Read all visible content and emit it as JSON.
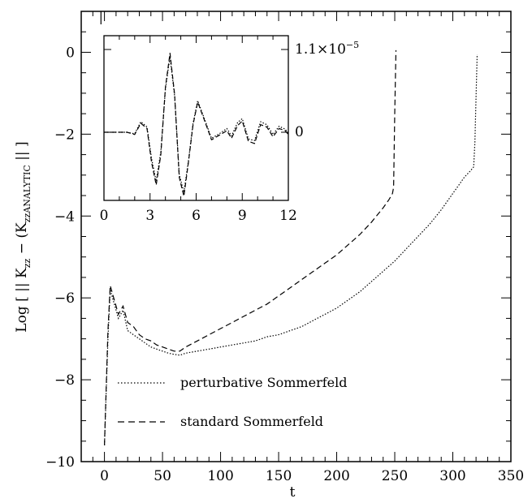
{
  "chart_data": [
    {
      "type": "line",
      "title": "",
      "xlabel": "t",
      "ylabel": "Log [ || K_zz − (K_zz)_ANALYTIC || ]",
      "ylabel_parts": {
        "prefix": "Log [ || K",
        "sub1": "zz",
        "mid": " − (K",
        "sub2": "zz",
        "sub3": "ANALYTIC",
        "suffix": " || ]"
      },
      "xlim": [
        -20,
        350
      ],
      "ylim": [
        -10,
        1
      ],
      "xticks": [
        0,
        50,
        100,
        150,
        200,
        250,
        300,
        350
      ],
      "yticks": [
        -10,
        -8,
        -6,
        -4,
        -2,
        0
      ],
      "legend_placement": "bottom-left inside",
      "series": [
        {
          "name": "perturbative Sommerfeld",
          "style": "dotted",
          "color": "#000000",
          "x": [
            0,
            3,
            5,
            8,
            12,
            16,
            20,
            25,
            30,
            35,
            40,
            45,
            50,
            55,
            60,
            65,
            70,
            80,
            90,
            100,
            110,
            120,
            130,
            140,
            150,
            160,
            170,
            180,
            190,
            200,
            210,
            220,
            230,
            240,
            250,
            260,
            270,
            280,
            290,
            300,
            305,
            310,
            315,
            318,
            319,
            320,
            321
          ],
          "y": [
            -9.6,
            -7.0,
            -5.8,
            -6.1,
            -6.5,
            -6.3,
            -6.8,
            -6.9,
            -7.0,
            -7.1,
            -7.2,
            -7.25,
            -7.3,
            -7.35,
            -7.38,
            -7.4,
            -7.35,
            -7.3,
            -7.25,
            -7.2,
            -7.15,
            -7.1,
            -7.05,
            -6.95,
            -6.9,
            -6.8,
            -6.7,
            -6.55,
            -6.4,
            -6.25,
            -6.05,
            -5.85,
            -5.6,
            -5.35,
            -5.1,
            -4.8,
            -4.5,
            -4.2,
            -3.85,
            -3.45,
            -3.25,
            -3.05,
            -2.9,
            -2.8,
            -2.2,
            -1.1,
            -0.05
          ]
        },
        {
          "name": "standard Sommerfeld",
          "style": "dashed",
          "color": "#000000",
          "x": [
            0,
            3,
            5,
            8,
            12,
            16,
            20,
            25,
            30,
            35,
            40,
            45,
            50,
            55,
            60,
            65,
            70,
            80,
            90,
            100,
            110,
            120,
            130,
            140,
            150,
            160,
            170,
            180,
            190,
            200,
            210,
            220,
            230,
            240,
            245,
            248,
            249,
            250,
            251
          ],
          "y": [
            -9.6,
            -6.8,
            -5.7,
            -6.0,
            -6.4,
            -6.2,
            -6.6,
            -6.7,
            -6.9,
            -7.0,
            -7.05,
            -7.15,
            -7.2,
            -7.25,
            -7.3,
            -7.3,
            -7.2,
            -7.05,
            -6.9,
            -6.75,
            -6.6,
            -6.45,
            -6.3,
            -6.15,
            -5.95,
            -5.75,
            -5.55,
            -5.35,
            -5.15,
            -4.95,
            -4.7,
            -4.45,
            -4.15,
            -3.8,
            -3.6,
            -3.45,
            -3.3,
            -1.5,
            0.05
          ]
        }
      ]
    },
    {
      "type": "line",
      "title": "",
      "xlabel": "",
      "ylabel": "",
      "xlim": [
        0,
        12
      ],
      "ylim": [
        -1.1e-05,
        1.1e-05
      ],
      "xticks": [
        0,
        3,
        6,
        9,
        12
      ],
      "ytick_labels": [
        "1.1×10",
        "−5",
        "0"
      ],
      "series": [
        {
          "name": "",
          "style": "dashed",
          "color": "#000000",
          "x": [
            0,
            0.5,
            1,
            1.5,
            2,
            2.4,
            2.8,
            3.1,
            3.4,
            3.7,
            4.0,
            4.3,
            4.6,
            4.9,
            5.2,
            5.5,
            5.8,
            6.1,
            6.5,
            7.0,
            7.5,
            8.0,
            8.3,
            8.7,
            9.0,
            9.4,
            9.8,
            10.2,
            10.6,
            11.0,
            11.4,
            11.8,
            12
          ],
          "y": [
            0,
            0,
            0,
            0.0,
            -3e-07,
            1.2e-06,
            5e-07,
            -4e-06,
            -7e-06,
            -3e-06,
            6e-06,
            1.05e-05,
            5e-06,
            -6e-06,
            -8.5e-06,
            -4e-06,
            1e-06,
            4e-06,
            1.8e-06,
            -1e-06,
            -4e-07,
            2e-07,
            -8e-07,
            9e-07,
            1.5e-06,
            -1.2e-06,
            -1.5e-06,
            1e-06,
            7e-07,
            -6e-07,
            5e-07,
            2e-07,
            -3e-07
          ]
        },
        {
          "name": "",
          "style": "dotted",
          "color": "#000000",
          "x": [
            0,
            0.5,
            1,
            1.5,
            2,
            2.4,
            2.8,
            3.1,
            3.4,
            3.7,
            4.0,
            4.3,
            4.6,
            4.9,
            5.2,
            5.5,
            5.8,
            6.1,
            6.5,
            7.0,
            7.5,
            8.0,
            8.3,
            8.7,
            9.0,
            9.4,
            9.8,
            10.2,
            10.6,
            11.0,
            11.4,
            11.8,
            12
          ],
          "y": [
            0,
            0,
            0,
            0.0,
            -2e-07,
            1.4e-06,
            7e-07,
            -3.5e-06,
            -6.5e-06,
            -2.6e-06,
            5.8e-06,
            1e-05,
            4.8e-06,
            -5.6e-06,
            -8e-06,
            -3.8e-06,
            1.2e-06,
            4.2e-06,
            2e-06,
            -8e-07,
            -2e-07,
            5e-07,
            -5e-07,
            1.3e-06,
            1.8e-06,
            -9e-07,
            -1.1e-06,
            1.4e-06,
            1e-06,
            -3e-07,
            8e-07,
            4e-07,
            -1e-07
          ]
        }
      ]
    }
  ]
}
